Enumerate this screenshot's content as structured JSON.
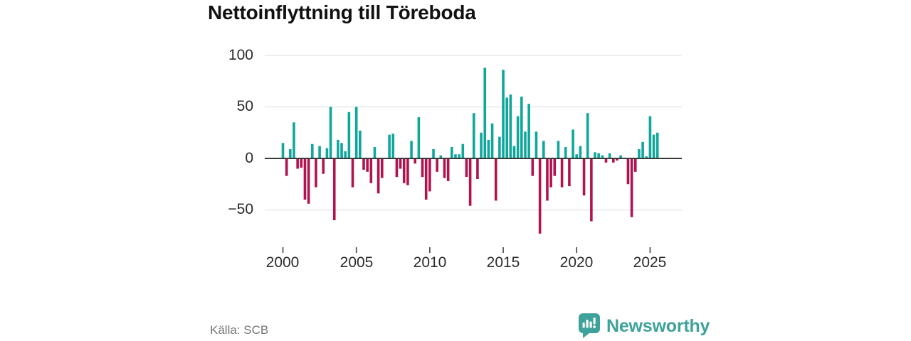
{
  "header": {
    "title": "Nettoinflyttning till Töreboda"
  },
  "footer": {
    "source": "Källa: SCB",
    "brand": "Newsworthy"
  },
  "colors": {
    "positive": "#0fa69c",
    "negative": "#b1134f",
    "brand": "#3fa29a",
    "grid": "#e3e3e3",
    "zero_axis": "#3a3a3a",
    "tick": "#444444",
    "tick_label": "#2b2b2b",
    "source_text": "#757575"
  },
  "chart_data": {
    "type": "bar",
    "title": "Nettoinflyttning till Töreboda",
    "frequency": "quarterly",
    "series_start": "2000-Q1",
    "series_end": "2025-Q3",
    "x_axis": {
      "labels": [
        "2000",
        "2005",
        "2010",
        "2015",
        "2020",
        "2025"
      ],
      "tick_indices": [
        0,
        20,
        40,
        60,
        80,
        100
      ]
    },
    "y_axis": {
      "labels": [
        "100",
        "50",
        "0",
        "−50"
      ],
      "values": [
        100,
        50,
        0,
        -50
      ]
    },
    "ylim": [
      -80,
      105
    ],
    "grid": true,
    "legend": false,
    "values": [
      15,
      -17,
      9,
      35,
      -10,
      -9,
      -40,
      -44,
      14,
      -28,
      12,
      -15,
      10,
      50,
      -60,
      18,
      15,
      7,
      45,
      -28,
      50,
      27,
      -11,
      -13,
      -24,
      11,
      -34,
      -19,
      0,
      23,
      24,
      -18,
      -10,
      -24,
      -26,
      17,
      -5,
      40,
      -18,
      -40,
      -32,
      9,
      -13,
      3,
      -19,
      -22,
      11,
      4,
      4,
      14,
      -18,
      -46,
      44,
      -20,
      25,
      88,
      18,
      34,
      -41,
      21,
      86,
      59,
      62,
      12,
      41,
      60,
      26,
      53,
      -17,
      26,
      -73,
      17,
      -41,
      -28,
      -17,
      17,
      -28,
      11,
      -27,
      28,
      4,
      12,
      -36,
      44,
      -61,
      6,
      5,
      3,
      -4,
      5,
      -4,
      -2,
      3,
      0,
      -25,
      -57,
      -13,
      9,
      16,
      2,
      41,
      23,
      25
    ]
  }
}
